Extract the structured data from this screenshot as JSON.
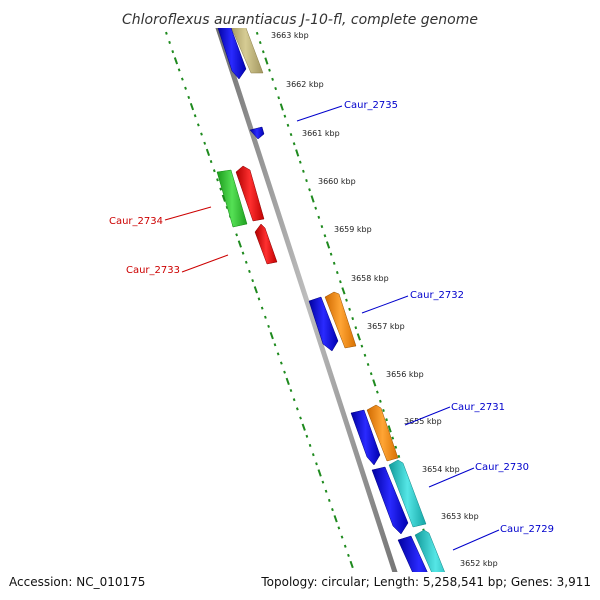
{
  "title": "Chloroflexus aurantiacus J-10-fl, complete genome",
  "footer": {
    "accession": "Accession: NC_010175",
    "summary": "Topology: circular; Length: 5,258,541 bp; Genes: 3,911"
  },
  "colors": {
    "backbone": "#8a8a8a",
    "tick_line": "#1e8a1e",
    "label_forward": "#0000cc",
    "label_reverse": "#cc0000",
    "gene_blue": "#1414e6",
    "gene_tan": "#bdb27a",
    "gene_red": "#ee1111",
    "gene_green": "#33cc33",
    "gene_orange": "#ff8c00",
    "gene_cyan": "#22cccc"
  },
  "kbp_ticks": [
    "3663 kbp",
    "3662 kbp",
    "3661 kbp",
    "3660 kbp",
    "3659 kbp",
    "3658 kbp",
    "3657 kbp",
    "3656 kbp",
    "3655 kbp",
    "3654 kbp",
    "3653 kbp",
    "3652 kbp"
  ],
  "gene_labels": {
    "caur_2735": "Caur_2735",
    "caur_2734": "Caur_2734",
    "caur_2733": "Caur_2733",
    "caur_2732": "Caur_2732",
    "caur_2731": "Caur_2731",
    "caur_2730": "Caur_2730",
    "caur_2729": "Caur_2729"
  }
}
